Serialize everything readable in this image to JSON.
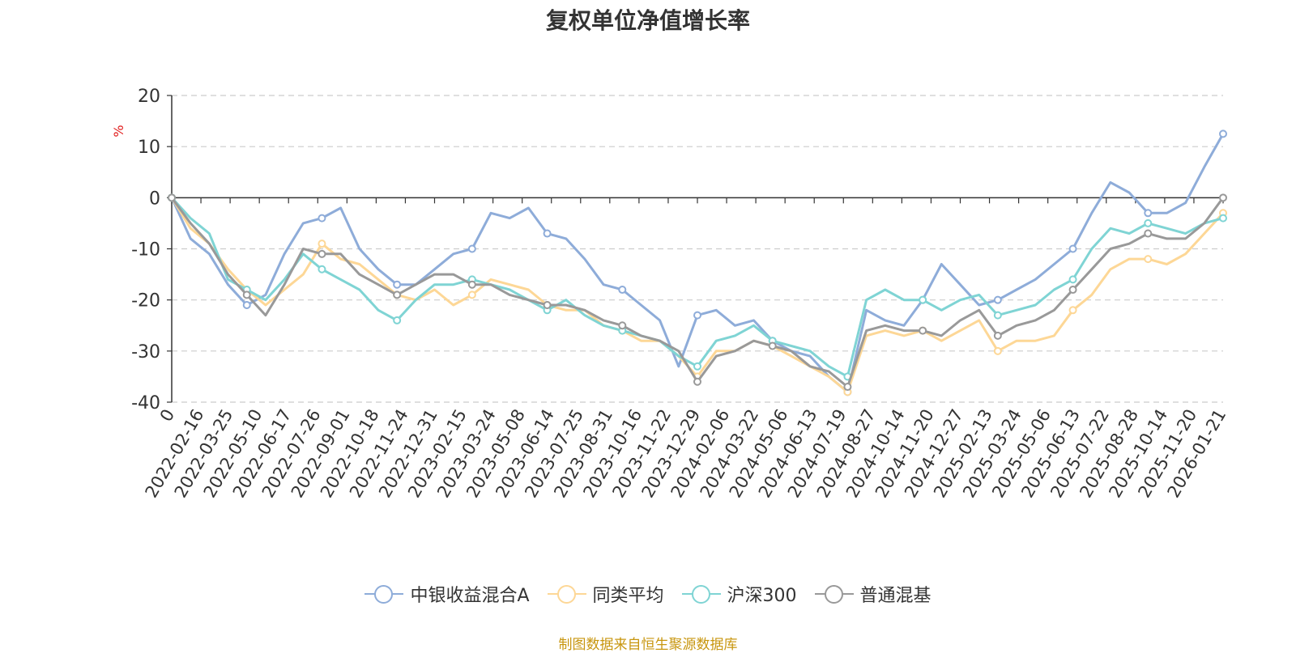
{
  "chart_data": {
    "type": "line",
    "title": "复权单位净值增长率",
    "ylabel": "%",
    "ylim": [
      -40,
      20
    ],
    "yticks": [
      20,
      10,
      0,
      -10,
      -20,
      -30,
      -40
    ],
    "grid": true,
    "legend_position": "bottom",
    "x_ticks": [
      "0",
      "2022-02-16",
      "2022-03-25",
      "2022-05-10",
      "2022-06-17",
      "2022-07-26",
      "2022-09-01",
      "2022-10-18",
      "2022-11-24",
      "2022-12-31",
      "2023-02-15",
      "2023-03-24",
      "2023-05-08",
      "2023-06-14",
      "2023-07-25",
      "2023-08-31",
      "2023-10-16",
      "2023-11-22",
      "2023-12-29",
      "2024-02-06",
      "2024-03-22",
      "2024-05-06",
      "2024-06-13",
      "2024-07-19",
      "2024-08-27",
      "2024-10-14",
      "2024-11-20",
      "2024-12-27",
      "2025-02-13",
      "2025-03-24",
      "2025-05-06",
      "2025-06-13",
      "2025-07-22",
      "2025-08-28",
      "2025-10-14",
      "2025-11-20",
      "2026-01-21"
    ],
    "series": [
      {
        "name": "中银收益混合A",
        "color": "#8eacd9",
        "values": [
          0,
          -8,
          -11,
          -17,
          -21,
          -19,
          -11,
          -5,
          -4,
          -2,
          -10,
          -14,
          -17,
          -17,
          -14,
          -11,
          -10,
          -3,
          -4,
          -2,
          -7,
          -8,
          -12,
          -17,
          -18,
          -21,
          -24,
          -33,
          -23,
          -22,
          -25,
          -24,
          -28,
          -30,
          -31,
          -35,
          -38,
          -22,
          -24,
          -25,
          -20,
          -13,
          -17,
          -21,
          -20,
          -18,
          -16,
          -13,
          -10,
          -3,
          3,
          1,
          -3,
          -3,
          -1,
          6,
          12.5
        ]
      },
      {
        "name": "同类平均",
        "color": "#fdd796",
        "values": [
          0,
          -6,
          -9,
          -14,
          -18,
          -21,
          -18,
          -15,
          -9,
          -12,
          -13,
          -16,
          -19,
          -20,
          -18,
          -21,
          -19,
          -16,
          -17,
          -18,
          -21,
          -22,
          -22,
          -25,
          -26,
          -28,
          -28,
          -31,
          -35,
          -30,
          -30,
          -28,
          -29,
          -31,
          -33,
          -35,
          -38,
          -27,
          -26,
          -27,
          -26,
          -28,
          -26,
          -24,
          -30,
          -28,
          -28,
          -27,
          -22,
          -19,
          -14,
          -12,
          -12,
          -13,
          -11,
          -7,
          -3
        ]
      },
      {
        "name": "沪深300",
        "color": "#7fd4d4",
        "values": [
          0,
          -4,
          -7,
          -16,
          -18,
          -20,
          -16,
          -11,
          -14,
          -16,
          -18,
          -22,
          -24,
          -20,
          -17,
          -17,
          -16,
          -17,
          -18,
          -20,
          -22,
          -20,
          -23,
          -25,
          -26,
          -27,
          -28,
          -31,
          -33,
          -28,
          -27,
          -25,
          -28,
          -29,
          -30,
          -33,
          -35,
          -20,
          -18,
          -20,
          -20,
          -22,
          -20,
          -19,
          -23,
          -22,
          -21,
          -18,
          -16,
          -10,
          -6,
          -7,
          -5,
          -6,
          -7,
          -5,
          -4
        ]
      },
      {
        "name": "普通混基",
        "color": "#999999",
        "values": [
          0,
          -5,
          -9,
          -15,
          -19,
          -23,
          -17,
          -10,
          -11,
          -11,
          -15,
          -17,
          -19,
          -17,
          -15,
          -15,
          -17,
          -17,
          -19,
          -20,
          -21,
          -21,
          -22,
          -24,
          -25,
          -27,
          -28,
          -30,
          -36,
          -31,
          -30,
          -28,
          -29,
          -30,
          -33,
          -34,
          -37,
          -26,
          -25,
          -26,
          -26,
          -27,
          -24,
          -22,
          -27,
          -25,
          -24,
          -22,
          -18,
          -14,
          -10,
          -9,
          -7,
          -8,
          -8,
          -5,
          0
        ]
      }
    ]
  },
  "source_note": "制图数据来自恒生聚源数据库"
}
